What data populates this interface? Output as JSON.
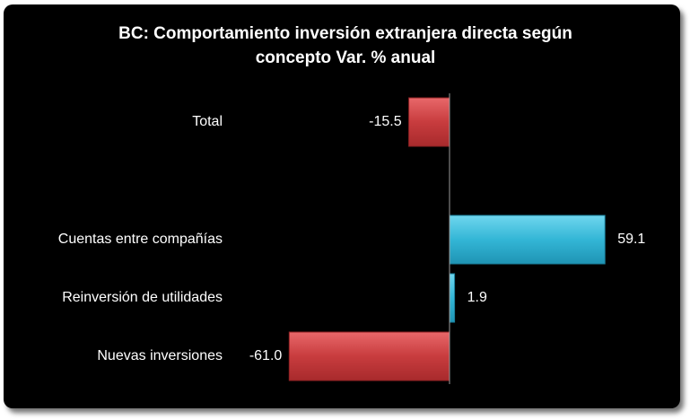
{
  "chart_data": {
    "type": "bar",
    "orientation": "horizontal",
    "title": "BC: Comportamiento inversión extranjera directa según concepto Var. % anual",
    "title_lines": [
      "BC: Comportamiento inversión extranjera directa según",
      "concepto Var. % anual"
    ],
    "categories": [
      "Total",
      "Cuentas entre compañías",
      "Reinversión de utilidades",
      "Nuevas inversiones"
    ],
    "values": [
      -15.5,
      59.1,
      1.9,
      -61.0
    ],
    "value_labels": [
      "-15.5",
      "59.1",
      "1.9",
      "-61.0"
    ],
    "xlim": [
      -61.0,
      59.1
    ],
    "grid": false,
    "legend": "none",
    "colors": {
      "negative": "#c0383a",
      "positive": "#2fb3d4",
      "axis": "#9a9a9a",
      "background": "#000000",
      "text": "#ffffff"
    }
  }
}
